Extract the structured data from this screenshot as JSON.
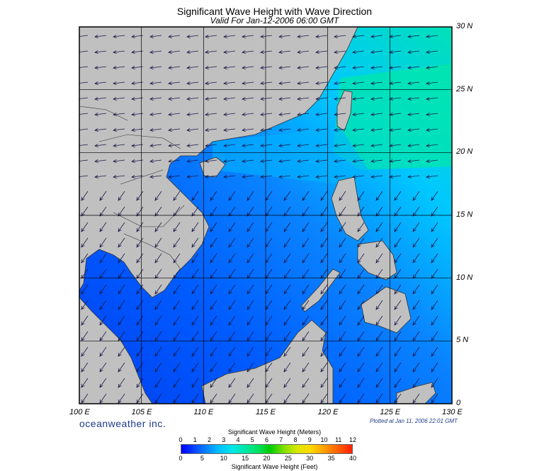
{
  "header": {
    "title": "Significant Wave Height with Wave Direction",
    "subtitle": "Valid For Jan-12-2006 06:00 GMT"
  },
  "map": {
    "lon_range": [
      100,
      130
    ],
    "lat_range": [
      0,
      30
    ],
    "lon_labels": [
      "100 E",
      "105 E",
      "110 E",
      "115 E",
      "120 E",
      "125 E",
      "130 E"
    ],
    "lat_labels": [
      "30 N",
      "25 N",
      "20 N",
      "15 N",
      "10 N",
      "5 N",
      "0"
    ],
    "land_color": "#c0c0c0",
    "water_low_color": "#0048ff",
    "water_high_color": "#00e8c8",
    "wave_direction": "from northeast toward southwest"
  },
  "branding": "oceanweather inc.",
  "plotted_note": "Plotted at Jan 11, 2006 22:01 GMT",
  "colorbar": {
    "meters_title": "Significant Wave Height (Meters)",
    "feet_title": "Significant Wave Height (Feet)",
    "meters_ticks": [
      "0",
      "1",
      "2",
      "3",
      "4",
      "5",
      "6",
      "7",
      "8",
      "9",
      "10",
      "11",
      "12"
    ],
    "feet_ticks": [
      "0",
      "5",
      "10",
      "15",
      "20",
      "25",
      "30",
      "35",
      "40"
    ]
  }
}
